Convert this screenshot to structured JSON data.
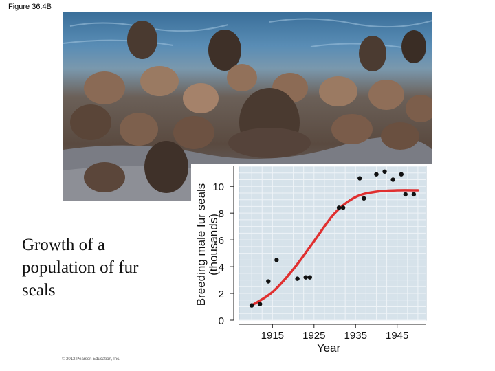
{
  "figure_label": "Figure 36.4B",
  "caption": "Growth of a population of fur seals",
  "copyright": "© 2012 Pearson Education, Inc.",
  "photo": {
    "icon": "fur-seal-colony-photo"
  },
  "colors": {
    "curve": "#e03030",
    "plot_bg": "#d6e2ea",
    "grid": "#eef3f7"
  },
  "chart_data": {
    "type": "scatter",
    "title": "",
    "xlabel": "Year",
    "ylabel": "Breeding male fur seals (thousands)",
    "ylabel_lines": [
      "Breeding male fur seals",
      "(thousands)"
    ],
    "xlim": [
      1907,
      1952
    ],
    "ylim": [
      0,
      11.5
    ],
    "xticks": [
      1915,
      1925,
      1935,
      1945
    ],
    "yticks": [
      0,
      2,
      4,
      6,
      8,
      10
    ],
    "grid": true,
    "series": [
      {
        "points": [
          {
            "x": 1910,
            "y": 1.1
          },
          {
            "x": 1912,
            "y": 1.2
          },
          {
            "x": 1914,
            "y": 2.9
          },
          {
            "x": 1916,
            "y": 4.5
          },
          {
            "x": 1921,
            "y": 3.1
          },
          {
            "x": 1923,
            "y": 3.2
          },
          {
            "x": 1924,
            "y": 3.2
          },
          {
            "x": 1931,
            "y": 8.4
          },
          {
            "x": 1932,
            "y": 8.4
          },
          {
            "x": 1936,
            "y": 10.6
          },
          {
            "x": 1937,
            "y": 9.1
          },
          {
            "x": 1940,
            "y": 10.9
          },
          {
            "x": 1942,
            "y": 11.1
          },
          {
            "x": 1944,
            "y": 10.5
          },
          {
            "x": 1946,
            "y": 10.9
          },
          {
            "x": 1947,
            "y": 9.4
          },
          {
            "x": 1949,
            "y": 9.4
          }
        ]
      }
    ],
    "trend_curve": {
      "type": "logistic",
      "points": [
        {
          "x": 1910,
          "y": 1.1
        },
        {
          "x": 1915,
          "y": 2.1
        },
        {
          "x": 1920,
          "y": 3.8
        },
        {
          "x": 1925,
          "y": 5.9
        },
        {
          "x": 1930,
          "y": 8.0
        },
        {
          "x": 1935,
          "y": 9.2
        },
        {
          "x": 1940,
          "y": 9.6
        },
        {
          "x": 1945,
          "y": 9.7
        },
        {
          "x": 1950,
          "y": 9.7
        }
      ]
    }
  }
}
